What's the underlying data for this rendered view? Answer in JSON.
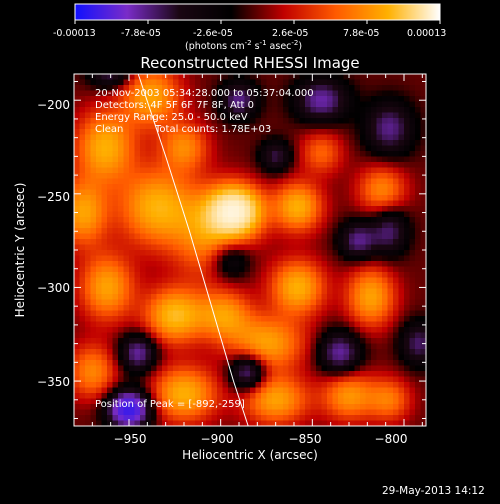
{
  "colorbar": {
    "tick_labels": [
      "-0.00013",
      "-7.8e-05",
      "-2.6e-05",
      "2.6e-05",
      "7.8e-05",
      "0.00013"
    ],
    "units_prefix": "(photons cm",
    "units_exp1": "-2",
    "units_mid": " s",
    "units_exp2": "-1",
    "units_mid2": " asec",
    "units_exp3": "-2",
    "units_suffix": ")",
    "stops": [
      "#1010ff",
      "#7a2cc8",
      "#1a0612",
      "#000000",
      "#c00000",
      "#ff5a00",
      "#ffb000",
      "#ffffff"
    ]
  },
  "info": {
    "time_range": "20-Nov-2003 05:34:28.000 to 05:37:04.000",
    "detectors": "Detectors: 4F 5F 6F 7F 8F, Att 0",
    "energy_range": "Energy Range: 25.0 - 50.0 keV",
    "algorithm": "Clean",
    "total_counts": "Total counts: 1.78E+03",
    "peak": "Position of Peak = [-892,-259]"
  },
  "footer": {
    "date": "29-May-2013 14:12"
  },
  "chart_data": {
    "type": "heatmap",
    "title": "Reconstructed RHESSI Image",
    "xlabel": "Heliocentric X (arcsec)",
    "ylabel": "Heliocentric Y (arcsec)",
    "xlim": [
      -980,
      -788
    ],
    "ylim": [
      -374,
      -186
    ],
    "xticks": [
      -950,
      -900,
      -850,
      -800
    ],
    "yticks": [
      -200,
      -250,
      -300,
      -350
    ],
    "xtick_labels": [
      "−950",
      "−900",
      "−850",
      "−800"
    ],
    "ytick_labels": [
      "−200",
      "−250",
      "−300",
      "−350"
    ],
    "value_range": [
      -0.00013,
      0.00013
    ],
    "peak_position": [
      -892,
      -259
    ],
    "blobs": [
      {
        "x": -892,
        "y": -259,
        "sx": 10,
        "sy": 9,
        "a": 1.0
      },
      {
        "x": -905,
        "y": -272,
        "sx": 14,
        "sy": 16,
        "a": 0.45
      },
      {
        "x": -858,
        "y": -257,
        "sx": 9,
        "sy": 9,
        "a": 0.55
      },
      {
        "x": -935,
        "y": -257,
        "sx": 14,
        "sy": 14,
        "a": 0.55
      },
      {
        "x": -963,
        "y": -225,
        "sx": 11,
        "sy": 13,
        "a": 0.55
      },
      {
        "x": -938,
        "y": -198,
        "sx": 11,
        "sy": 11,
        "a": 0.5
      },
      {
        "x": -920,
        "y": -225,
        "sx": 9,
        "sy": 9,
        "a": 0.4
      },
      {
        "x": -975,
        "y": -260,
        "sx": 9,
        "sy": 12,
        "a": 0.5
      },
      {
        "x": -962,
        "y": -300,
        "sx": 10,
        "sy": 12,
        "a": 0.5
      },
      {
        "x": -925,
        "y": -315,
        "sx": 11,
        "sy": 10,
        "a": 0.6
      },
      {
        "x": -898,
        "y": -315,
        "sx": 10,
        "sy": 9,
        "a": 0.45
      },
      {
        "x": -858,
        "y": -300,
        "sx": 10,
        "sy": 10,
        "a": 0.55
      },
      {
        "x": -875,
        "y": -330,
        "sx": 14,
        "sy": 10,
        "a": 0.5
      },
      {
        "x": -818,
        "y": -305,
        "sx": 9,
        "sy": 11,
        "a": 0.5
      },
      {
        "x": -812,
        "y": -248,
        "sx": 9,
        "sy": 9,
        "a": 0.4
      },
      {
        "x": -920,
        "y": -357,
        "sx": 12,
        "sy": 10,
        "a": 0.55
      },
      {
        "x": -870,
        "y": -360,
        "sx": 12,
        "sy": 9,
        "a": 0.5
      },
      {
        "x": -830,
        "y": -358,
        "sx": 10,
        "sy": 9,
        "a": 0.45
      },
      {
        "x": -808,
        "y": -360,
        "sx": 8,
        "sy": 8,
        "a": 0.35
      },
      {
        "x": -970,
        "y": -345,
        "sx": 9,
        "sy": 10,
        "a": 0.4
      },
      {
        "x": -845,
        "y": -228,
        "sx": 8,
        "sy": 8,
        "a": 0.3
      },
      {
        "x": -890,
        "y": -200,
        "sx": 7,
        "sy": 7,
        "a": -0.45
      },
      {
        "x": -845,
        "y": -200,
        "sx": 10,
        "sy": 8,
        "a": -0.5
      },
      {
        "x": -808,
        "y": -215,
        "sx": 9,
        "sy": 10,
        "a": -0.45
      },
      {
        "x": -808,
        "y": -270,
        "sx": 7,
        "sy": 9,
        "a": -0.4
      },
      {
        "x": -895,
        "y": -285,
        "sx": 8,
        "sy": 8,
        "a": -0.4
      },
      {
        "x": -945,
        "y": -335,
        "sx": 7,
        "sy": 7,
        "a": -0.5
      },
      {
        "x": -950,
        "y": -365,
        "sx": 8,
        "sy": 7,
        "a": -0.9
      },
      {
        "x": -885,
        "y": -345,
        "sx": 7,
        "sy": 7,
        "a": -0.55
      },
      {
        "x": -835,
        "y": -335,
        "sx": 8,
        "sy": 8,
        "a": -0.5
      },
      {
        "x": -825,
        "y": -275,
        "sx": 7,
        "sy": 7,
        "a": -0.45
      },
      {
        "x": -870,
        "y": -230,
        "sx": 6,
        "sy": 6,
        "a": -0.35
      },
      {
        "x": -960,
        "y": -185,
        "sx": 8,
        "sy": 6,
        "a": -0.4
      },
      {
        "x": -792,
        "y": -330,
        "sx": 7,
        "sy": 8,
        "a": -0.4
      }
    ],
    "limb_curve": [
      [
        -945,
        -186
      ],
      [
        -930,
        -230
      ],
      [
        -917,
        -270
      ],
      [
        -905,
        -310
      ],
      [
        -893,
        -350
      ],
      [
        -885,
        -374
      ]
    ],
    "grid": false
  }
}
